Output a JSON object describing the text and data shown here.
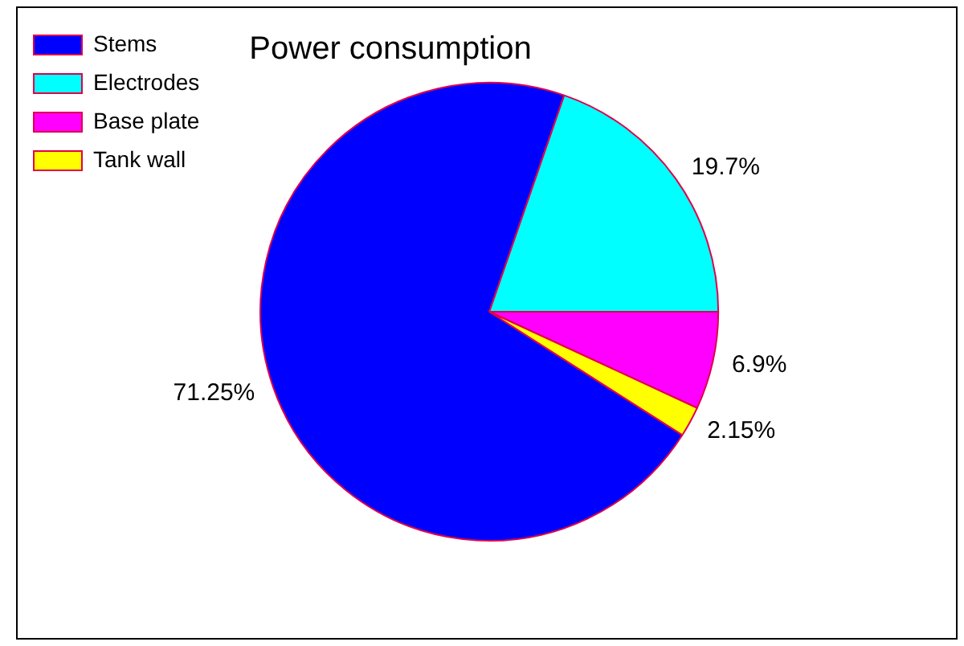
{
  "chart_data": {
    "type": "pie",
    "title": "Power consumption",
    "categories": [
      "Stems",
      "Electrodes",
      "Base plate",
      "Tank wall"
    ],
    "values": [
      71.25,
      19.7,
      6.9,
      2.15
    ],
    "colors": [
      "#0000ff",
      "#00ffff",
      "#ff00ff",
      "#ffff00"
    ],
    "value_labels": [
      "71.25%",
      "19.7%",
      "6.9%",
      "2.15%"
    ],
    "legend": "top left"
  }
}
